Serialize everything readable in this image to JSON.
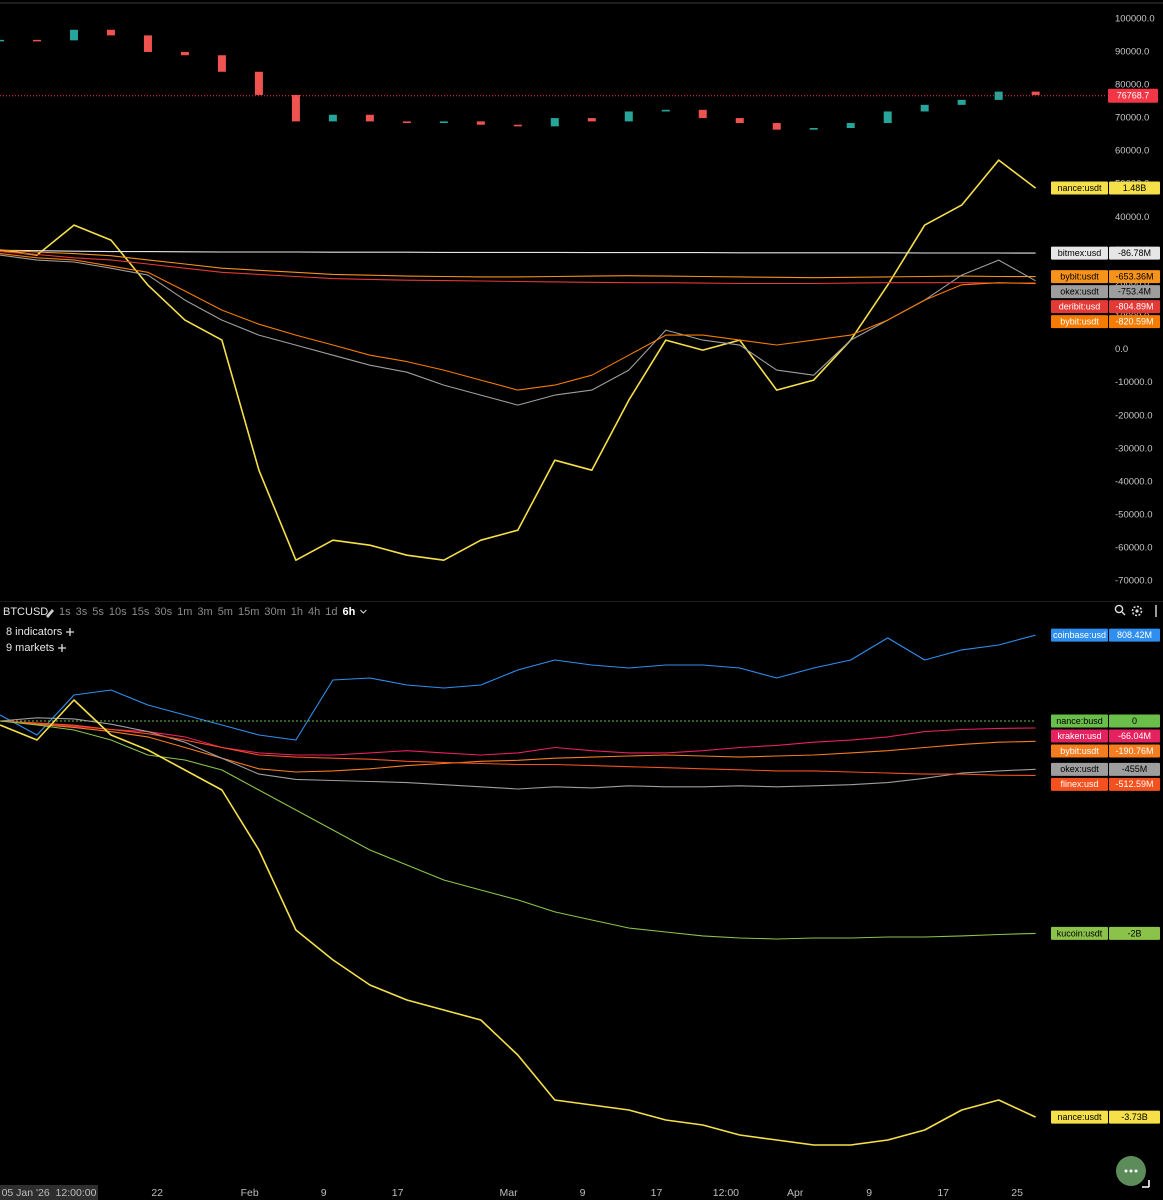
{
  "toolbar": {
    "symbol": "BTCUSD",
    "timeframes": [
      "1s",
      "3s",
      "5s",
      "10s",
      "15s",
      "30s",
      "1m",
      "3m",
      "5m",
      "15m",
      "30m",
      "1h",
      "4h",
      "1d",
      "6h"
    ],
    "indicators": "8 indicators",
    "markets": "9 markets"
  },
  "chart_data": [
    {
      "type": "candlestick",
      "x": [
        "2026-01-05",
        "2026-01-09",
        "2026-01-13",
        "2026-01-17",
        "2026-01-21",
        "2026-01-25",
        "2026-01-29",
        "2026-02-02",
        "2026-02-06",
        "2026-02-10",
        "2026-02-14",
        "2026-02-18",
        "2026-02-22",
        "2026-02-26",
        "2026-03-02",
        "2026-03-06",
        "2026-03-10",
        "2026-03-14",
        "2026-03-18",
        "2026-03-22",
        "2026-03-26",
        "2026-03-30",
        "2026-04-03",
        "2026-04-07",
        "2026-04-11",
        "2026-04-15",
        "2026-04-19",
        "2026-04-23",
        "2026-04-27"
      ],
      "xlim": [
        "2026-01-05",
        "2026-05-04T12:00"
      ],
      "values": [
        93650,
        93500,
        96700,
        95000,
        90000,
        89000,
        84000,
        77000,
        69000,
        71000,
        69000,
        68500,
        69000,
        68000,
        67500,
        70000,
        69000,
        72000,
        72500,
        70000,
        68500,
        66500,
        67000,
        68500,
        72000,
        74000,
        75500,
        78000,
        77000
      ],
      "color_up": "#26a69a",
      "color_down": "#ef5350",
      "last_price": 76768.7,
      "last_price_color": "#f23645",
      "ylim": [
        -75700,
        105700
      ],
      "yticks": [
        {
          "value": 100000,
          "label": "100000.0"
        },
        {
          "value": 90000,
          "label": "90000.0"
        },
        {
          "value": 80000,
          "label": "80000.0"
        },
        {
          "value": 70000,
          "label": "70000.0"
        },
        {
          "value": 60000,
          "label": "60000.0"
        },
        {
          "value": 50000,
          "label": "50000.0"
        },
        {
          "value": 40000,
          "label": "40000.0"
        },
        {
          "value": 30000,
          "label": "30000.0"
        },
        {
          "value": 20000,
          "label": "20000.0"
        },
        {
          "value": 10000,
          "label": "10000.0"
        },
        {
          "value": 0,
          "label": "0.0"
        },
        {
          "value": -10000,
          "label": "-10000.0"
        },
        {
          "value": -20000,
          "label": "-20000.0"
        },
        {
          "value": -30000,
          "label": "-30000.0"
        },
        {
          "value": -40000,
          "label": "-40000.0"
        },
        {
          "value": -50000,
          "label": "-50000.0"
        },
        {
          "value": -60000,
          "label": "-60000.0"
        },
        {
          "value": -70000,
          "label": "-70000.0"
        }
      ],
      "y2lim": [
        -8443,
        6010
      ],
      "series": [
        {
          "name": "nance:usdt",
          "color": "#f5e04a",
          "axis": "y2",
          "last_label": "1.48B",
          "values": [
            -14,
            -135,
            588,
            227,
            -858,
            -1701,
            -2183,
            -5316,
            -7484,
            -7002,
            -7123,
            -7364,
            -7484,
            -7002,
            -6762,
            -5075,
            -5316,
            -3629,
            -2183,
            -2424,
            -2183,
            -3388,
            -3147,
            -2183,
            -858,
            588,
            1070,
            2154,
            1480
          ]
        },
        {
          "name": "bitmex:usd",
          "color": "#e6e6e6",
          "axis": "y2",
          "last_label": "-86.78M",
          "values": [
            -20,
            -30,
            -40,
            -50,
            -50,
            -55,
            -60,
            -60,
            -60,
            -65,
            -65,
            -65,
            -70,
            -70,
            -70,
            -70,
            -75,
            -75,
            -75,
            -75,
            -80,
            -80,
            -80,
            -80,
            -80,
            -85,
            -85,
            -85,
            -86.78
          ]
        },
        {
          "name": "bybit:usdt",
          "color": "#f7931a",
          "axis": "y2",
          "last_label": "-653.36M",
          "values": [
            -14,
            -60,
            -100,
            -150,
            -250,
            -350,
            -450,
            -500,
            -550,
            -600,
            -620,
            -640,
            -650,
            -660,
            -660,
            -650,
            -640,
            -630,
            -640,
            -650,
            -660,
            -670,
            -680,
            -670,
            -660,
            -650,
            -640,
            -650,
            -653.36
          ]
        },
        {
          "name": "okex:usdt",
          "color": "#9e9e9e",
          "axis": "y2",
          "last_label": "-753.4M",
          "values": [
            -135,
            -255,
            -300,
            -450,
            -617,
            -1219,
            -1701,
            -2063,
            -2304,
            -2545,
            -2786,
            -2955,
            -3267,
            -3508,
            -3749,
            -3508,
            -3388,
            -2906,
            -1942,
            -2183,
            -2304,
            -2906,
            -3027,
            -2183,
            -1701,
            -1219,
            -617,
            -255,
            -753.4
          ]
        },
        {
          "name": "deribit:usd",
          "color": "#e53935",
          "axis": "y2",
          "last_label": "-804.89M",
          "values": [
            -50,
            -120,
            -200,
            -250,
            -350,
            -450,
            -550,
            -600,
            -650,
            -700,
            -720,
            -740,
            -750,
            -760,
            -770,
            -780,
            -790,
            -800,
            -800,
            -810,
            -820,
            -820,
            -820,
            -810,
            -800,
            -800,
            -800,
            -810,
            -804.89
          ]
        },
        {
          "name": "bybit:usdt",
          "color": "#f57c00",
          "axis": "y2",
          "last_label": "-820.59M",
          "values": [
            -100,
            -200,
            -250,
            -400,
            -550,
            -1000,
            -1460,
            -1800,
            -2063,
            -2300,
            -2545,
            -2700,
            -2906,
            -3147,
            -3388,
            -3267,
            -3027,
            -2545,
            -2063,
            -2063,
            -2183,
            -2300,
            -2183,
            -2063,
            -1700,
            -1219,
            -850,
            -800,
            -820.59
          ]
        }
      ]
    },
    {
      "type": "line",
      "x": [
        "2026-01-05",
        "2026-01-09",
        "2026-01-13",
        "2026-01-17",
        "2026-01-21",
        "2026-01-25",
        "2026-01-29",
        "2026-02-02",
        "2026-02-06",
        "2026-02-10",
        "2026-02-14",
        "2026-02-18",
        "2026-02-22",
        "2026-02-26",
        "2026-03-02",
        "2026-03-06",
        "2026-03-10",
        "2026-03-14",
        "2026-03-18",
        "2026-03-22",
        "2026-03-26",
        "2026-03-30",
        "2026-04-03",
        "2026-04-07",
        "2026-04-11",
        "2026-04-15",
        "2026-04-19",
        "2026-04-23",
        "2026-04-27"
      ],
      "xlim": [
        "2026-01-05",
        "2026-05-04T12:00"
      ],
      "xticks": [
        {
          "value": "2026-01-22",
          "label": "22"
        },
        {
          "value": "2026-02-01",
          "label": "Feb"
        },
        {
          "value": "2026-02-09",
          "label": "9"
        },
        {
          "value": "2026-02-17",
          "label": "17"
        },
        {
          "value": "2026-03-01",
          "label": "Mar"
        },
        {
          "value": "2026-03-09",
          "label": "9"
        },
        {
          "value": "2026-03-17",
          "label": "17"
        },
        {
          "value": "2026-03-24T12:00",
          "label": "12:00"
        },
        {
          "value": "2026-04-01",
          "label": "Apr"
        },
        {
          "value": "2026-04-09",
          "label": "9"
        },
        {
          "value": "2026-04-17",
          "label": "17"
        },
        {
          "value": "2026-04-25",
          "label": "25"
        }
      ],
      "crosshair_label": "05 Jan '26  12:00:00",
      "ylim": [
        -4322,
        1111
      ],
      "series": [
        {
          "name": "coinbase:usd",
          "color": "#2f8ff0",
          "last_label": "808.42M",
          "values": [
            56,
            -132,
            245,
            292,
            151,
            56,
            -38,
            -132,
            -179,
            386,
            405,
            339,
            311,
            339,
            480,
            574,
            527,
            499,
            527,
            527,
            499,
            405,
            499,
            574,
            782,
            574,
            669,
            716,
            808.42
          ]
        },
        {
          "name": "nance:busd",
          "color": "#6abf4b",
          "dashed": true,
          "values": [
            0,
            0,
            0,
            0,
            0,
            0,
            0,
            0,
            0,
            0,
            0,
            0,
            0,
            0,
            0,
            0,
            0,
            0,
            0,
            0,
            0,
            0,
            0,
            0,
            0,
            0,
            0,
            0,
            0
          ]
        },
        {
          "name": "kraken:usd",
          "color": "#e5215f",
          "last_label": "-66.04M",
          "values": [
            0,
            -20,
            -50,
            -80,
            -100,
            -150,
            -250,
            -300,
            -320,
            -320,
            -300,
            -280,
            -300,
            -320,
            -300,
            -250,
            -280,
            -300,
            -300,
            -280,
            -250,
            -230,
            -200,
            -180,
            -150,
            -100,
            -80,
            -70,
            -66.04
          ]
        },
        {
          "name": "bybit:usdt",
          "color": "#f57c1f",
          "last_label": "-190.76M",
          "values": [
            0,
            -30,
            -60,
            -100,
            -150,
            -250,
            -350,
            -450,
            -480,
            -470,
            -450,
            -420,
            -400,
            -380,
            -370,
            -350,
            -340,
            -330,
            -320,
            -330,
            -340,
            -330,
            -320,
            -300,
            -280,
            -250,
            -220,
            -200,
            -190.76
          ]
        },
        {
          "name": "okex:usdt",
          "color": "#9e9e9e",
          "last_label": "-455M",
          "values": [
            0,
            30,
            20,
            -30,
            -100,
            -200,
            -350,
            -500,
            -550,
            -560,
            -570,
            -580,
            -600,
            -620,
            -640,
            -620,
            -630,
            -610,
            -620,
            -620,
            -610,
            -620,
            -610,
            -600,
            -580,
            -540,
            -490,
            -470,
            -455
          ]
        },
        {
          "name": "flinex:usd",
          "color": "#f4511e",
          "last_label": "-512.59M",
          "values": [
            0,
            -20,
            -40,
            -80,
            -120,
            -180,
            -250,
            -320,
            -340,
            -350,
            -360,
            -380,
            -390,
            -400,
            -410,
            -410,
            -420,
            -430,
            -440,
            -450,
            -460,
            -470,
            -470,
            -480,
            -490,
            -500,
            -500,
            -510,
            -512.59
          ]
        },
        {
          "name": "kucoin:usdt",
          "color": "#8bc34a",
          "last_label": "-2B",
          "values": [
            0,
            -38,
            -85,
            -179,
            -320,
            -367,
            -461,
            -650,
            -838,
            -1026,
            -1215,
            -1356,
            -1497,
            -1591,
            -1685,
            -1798,
            -1874,
            -1949,
            -1987,
            -2024,
            -2043,
            -2053,
            -2043,
            -2043,
            -2034,
            -2034,
            -2024,
            -2010,
            -2000
          ]
        },
        {
          "name": "nance:usdt",
          "color": "#f5e04a",
          "last_label": "-3.73B",
          "values": [
            -38,
            -179,
            198,
            -132,
            -273,
            -461,
            -650,
            -1215,
            -1968,
            -2250,
            -2486,
            -2627,
            -2721,
            -2815,
            -3145,
            -3569,
            -3616,
            -3663,
            -3757,
            -3804,
            -3898,
            -3945,
            -3992,
            -3992,
            -3945,
            -3851,
            -3663,
            -3569,
            -3730
          ]
        }
      ]
    }
  ]
}
